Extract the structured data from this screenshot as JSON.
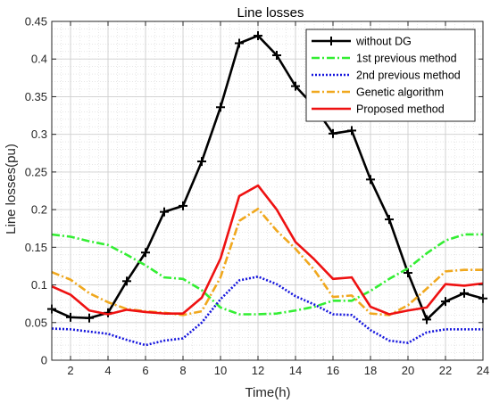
{
  "chart_data": {
    "type": "line",
    "title": "Line losses",
    "xlabel": "Time(h)",
    "ylabel": "Line losses(pu)",
    "x": [
      1,
      2,
      3,
      4,
      5,
      6,
      7,
      8,
      9,
      10,
      11,
      12,
      13,
      14,
      15,
      16,
      17,
      18,
      19,
      20,
      21,
      22,
      23,
      24
    ],
    "xlim": [
      1,
      24
    ],
    "ylim": [
      0,
      0.45
    ],
    "xticks": [
      2,
      4,
      6,
      8,
      10,
      12,
      14,
      16,
      18,
      20,
      22,
      24
    ],
    "yticks": [
      0,
      0.05,
      0.1,
      0.15,
      0.2,
      0.25,
      0.3,
      0.35,
      0.4,
      0.45
    ],
    "ytick_labels": [
      "0",
      "0.05",
      "0.1",
      "0.15",
      "0.2",
      "0.25",
      "0.3",
      "0.35",
      "0.4",
      "0.45"
    ],
    "grid": true,
    "legend_position": "top-right",
    "series": [
      {
        "name": "without DG",
        "color": "#000000",
        "style": "solid",
        "marker": "plus",
        "values": [
          0.068,
          0.057,
          0.056,
          0.063,
          0.105,
          0.143,
          0.197,
          0.205,
          0.264,
          0.336,
          0.421,
          0.431,
          0.405,
          0.364,
          0.337,
          0.301,
          0.305,
          0.24,
          0.187,
          0.116,
          0.054,
          0.078,
          0.089,
          0.082
        ]
      },
      {
        "name": "1st previous method",
        "color": "#33ee33",
        "style": "dashdot",
        "values": [
          0.167,
          0.164,
          0.158,
          0.153,
          0.14,
          0.126,
          0.11,
          0.108,
          0.093,
          0.07,
          0.061,
          0.061,
          0.062,
          0.066,
          0.071,
          0.079,
          0.079,
          0.092,
          0.108,
          0.122,
          0.142,
          0.159,
          0.167,
          0.167
        ]
      },
      {
        "name": "2nd previous method",
        "color": "#1515dd",
        "style": "dotted",
        "values": [
          0.042,
          0.041,
          0.038,
          0.035,
          0.027,
          0.02,
          0.026,
          0.029,
          0.05,
          0.081,
          0.106,
          0.111,
          0.101,
          0.085,
          0.074,
          0.061,
          0.06,
          0.04,
          0.026,
          0.023,
          0.037,
          0.041,
          0.041,
          0.041
        ]
      },
      {
        "name": "Genetic algorithm",
        "color": "#f0a81e",
        "style": "dashdot",
        "values": [
          0.117,
          0.107,
          0.089,
          0.077,
          0.068,
          0.065,
          0.063,
          0.06,
          0.065,
          0.11,
          0.185,
          0.201,
          0.172,
          0.148,
          0.12,
          0.084,
          0.086,
          0.062,
          0.06,
          0.073,
          0.095,
          0.118,
          0.12,
          0.12
        ]
      },
      {
        "name": "Proposed method",
        "color": "#ee1111",
        "style": "solid",
        "values": [
          0.098,
          0.087,
          0.066,
          0.061,
          0.067,
          0.064,
          0.062,
          0.062,
          0.083,
          0.135,
          0.218,
          0.232,
          0.2,
          0.157,
          0.134,
          0.108,
          0.11,
          0.071,
          0.061,
          0.066,
          0.07,
          0.101,
          0.099,
          0.102
        ]
      }
    ]
  }
}
